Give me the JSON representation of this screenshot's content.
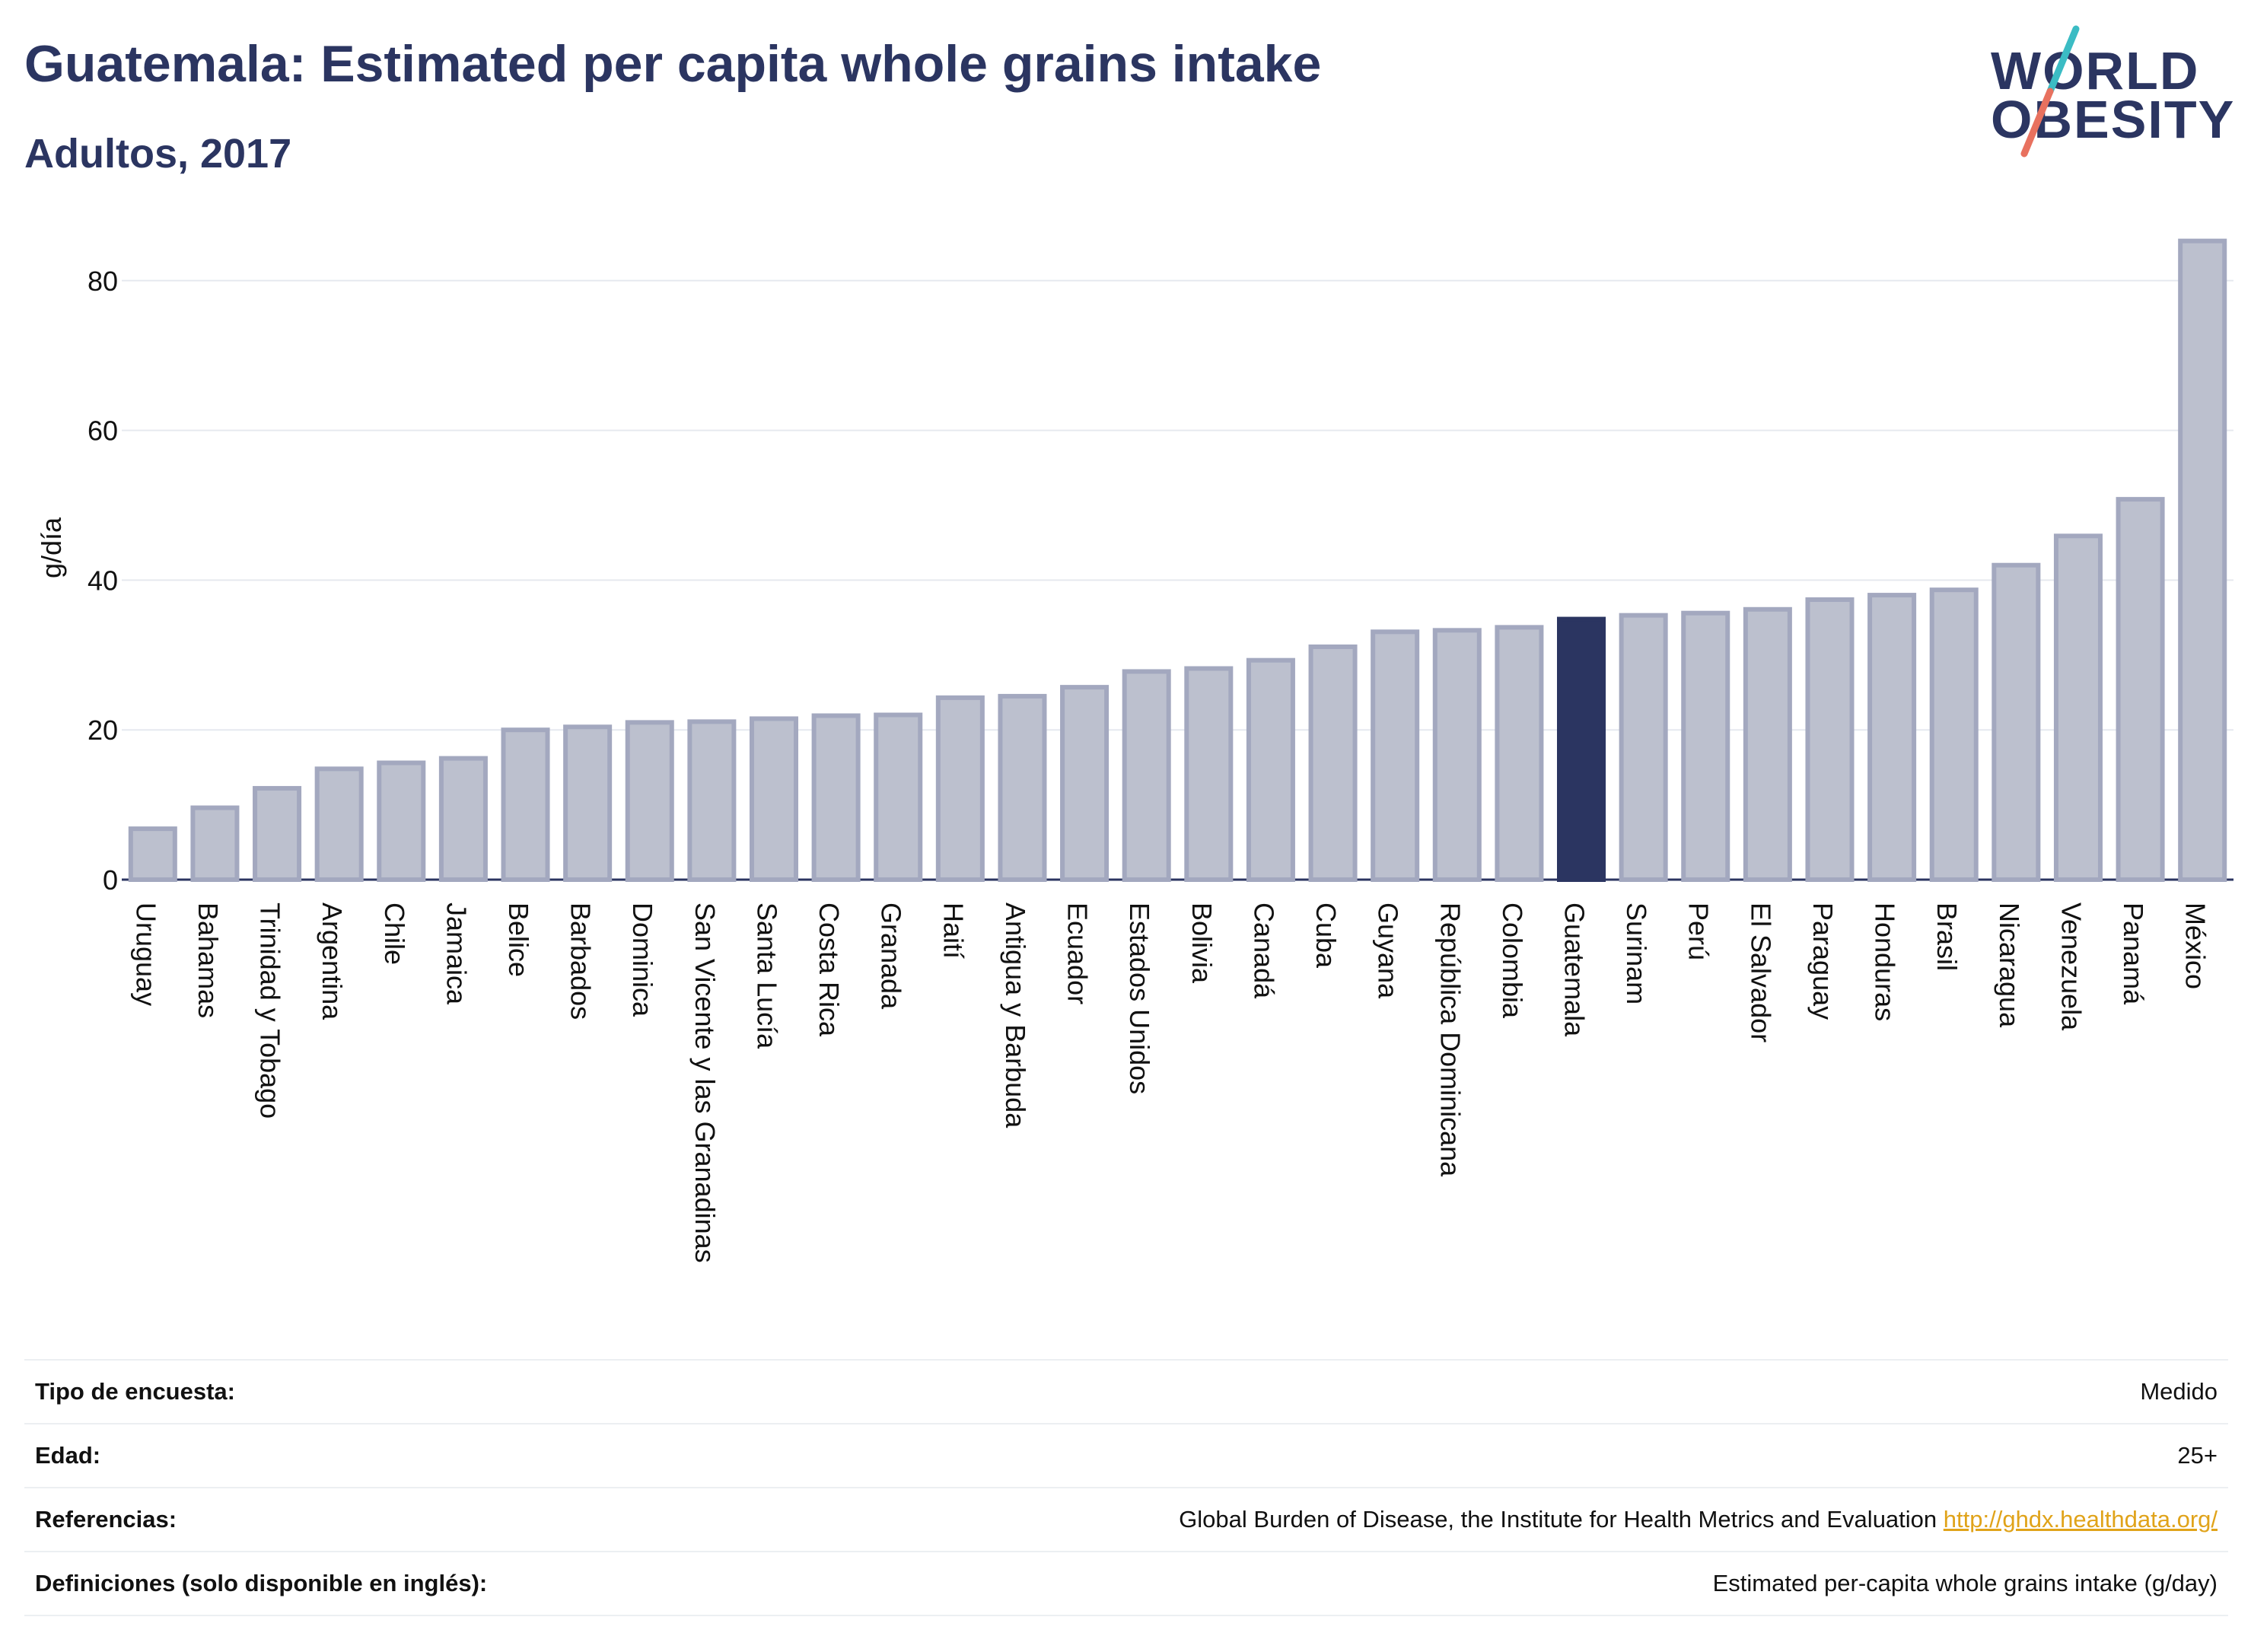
{
  "header": {
    "title": "Guatemala: Estimated per capita whole grains intake",
    "subtitle": "Adultos, 2017"
  },
  "logo": {
    "line1": "WORLD",
    "line2": "OBESITY",
    "colors": [
      "#2b3561",
      "#3bbcc4",
      "#e8715f"
    ]
  },
  "chart_data": {
    "type": "bar",
    "ylabel": "g/día",
    "ylim": [
      0,
      88
    ],
    "yticks": [
      0,
      20,
      40,
      60,
      80
    ],
    "grid": true,
    "highlight": "Guatemala",
    "colors": {
      "bar": "#bcc0ce",
      "bar_border": "#a3a8bf",
      "highlight": "#2b3561"
    },
    "categories": [
      "Uruguay",
      "Bahamas",
      "Trinidad y Tobago",
      "Argentina",
      "Chile",
      "Jamaica",
      "Belice",
      "Barbados",
      "Dominica",
      "San Vicente y las Granadinas",
      "Santa Lucía",
      "Costa Rica",
      "Granada",
      "Haití",
      "Antigua y Barbuda",
      "Ecuador",
      "Estados Unidos",
      "Bolivia",
      "Canadá",
      "Cuba",
      "Guyana",
      "República Dominicana",
      "Colombia",
      "Guatemala",
      "Surinam",
      "Perú",
      "El Salvador",
      "Paraguay",
      "Honduras",
      "Brasil",
      "Nicaragua",
      "Venezuela",
      "Panamá",
      "México"
    ],
    "values": [
      6.8,
      9.6,
      12.2,
      14.8,
      15.6,
      16.2,
      20.0,
      20.4,
      21.0,
      21.1,
      21.5,
      21.9,
      22.0,
      24.3,
      24.5,
      25.7,
      27.8,
      28.2,
      29.3,
      31.1,
      33.1,
      33.3,
      33.7,
      34.8,
      35.3,
      35.6,
      36.1,
      37.4,
      38.0,
      38.7,
      42.0,
      45.9,
      50.8,
      85.3
    ]
  },
  "meta": {
    "survey_label": "Tipo de encuesta:",
    "survey_value": "Medido",
    "age_label": "Edad:",
    "age_value": "25+",
    "refs_label": "Referencias:",
    "refs_text": "Global Burden of Disease, the Institute for Health Metrics and Evaluation",
    "refs_link": "http://ghdx.healthdata.org/",
    "defs_label": "Definiciones (solo disponible en inglés):",
    "defs_value": "Estimated per-capita whole grains intake (g/day)"
  }
}
